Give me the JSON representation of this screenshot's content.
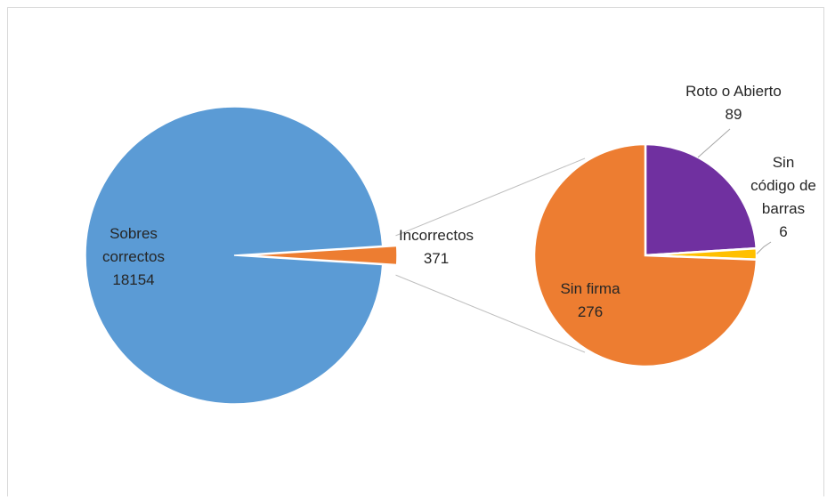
{
  "chart_data": {
    "type": "pie",
    "subtype": "pie-of-pie",
    "main_pie": {
      "slices": [
        {
          "label_lines": [
            "Sobres",
            "correctos"
          ],
          "value": 18154,
          "color": "#5b9bd5"
        },
        {
          "label_lines": [
            "Incorrectos"
          ],
          "value": 371,
          "color": "#ed7d31"
        }
      ]
    },
    "secondary_pie": {
      "slices": [
        {
          "label_lines": [
            "Sin firma"
          ],
          "value": 276,
          "color": "#ed7d31"
        },
        {
          "label_lines": [
            "Roto o Abierto"
          ],
          "value": 89,
          "color": "#7030a0"
        },
        {
          "label_lines": [
            "Sin",
            "código de",
            "barras"
          ],
          "value": 6,
          "color": "#ffc000"
        }
      ]
    },
    "title": "",
    "legend": "none"
  }
}
